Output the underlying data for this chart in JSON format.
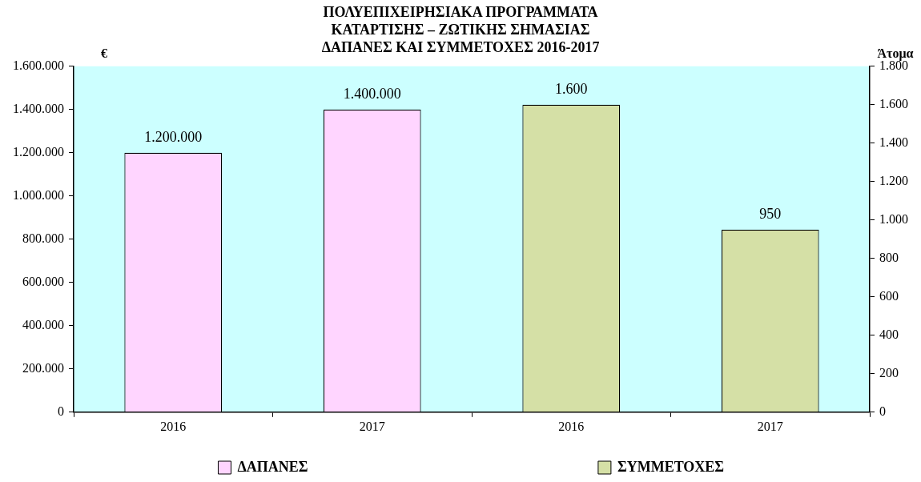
{
  "chart_data": {
    "type": "bar",
    "title": "ΠΟΛΥΕΠΙΧΕΙΡΗΣΙΑΚΑ ΠΡΟΓΡΑΜΜΑΤΑ\nΚΑΤΑΡΤΙΣΗΣ – ΖΩΤΙΚΗΣ ΣΗΜΑΣΙΑΣ\nΔΑΠΑΝΕΣ ΚΑΙ ΣΥΜΜΕΤΟΧΕΣ 2016-2017",
    "ylabel": "€",
    "y2label": "Άτομα",
    "categories": [
      "2016",
      "2017",
      "2016",
      "2017"
    ],
    "series": [
      {
        "name": "ΔΑΠΑΝΕΣ",
        "color": "#ffd5ff",
        "values": [
          1200000,
          1400000,
          null,
          null
        ],
        "value_labels": [
          "1.200.000",
          "1.400.000",
          null,
          null
        ]
      },
      {
        "name": "ΣΥΜΜΕΤΟΧΕΣ",
        "color": "#d5e0a6",
        "axis": "y2",
        "values": [
          null,
          null,
          1600,
          950
        ],
        "value_labels": [
          null,
          null,
          "1.600",
          "950"
        ]
      }
    ],
    "ylim": [
      0,
      1600000
    ],
    "yticks": [
      {
        "value": 0,
        "label": "0"
      },
      {
        "value": 200000,
        "label": "200.000"
      },
      {
        "value": 400000,
        "label": "400.000"
      },
      {
        "value": 600000,
        "label": "600.000"
      },
      {
        "value": 800000,
        "label": "800.000"
      },
      {
        "value": 1000000,
        "label": "1.000.000"
      },
      {
        "value": 1200000,
        "label": "1.200.000"
      },
      {
        "value": 1400000,
        "label": "1.400.000"
      },
      {
        "value": 1600000,
        "label": "1.600.000"
      }
    ],
    "y2lim": [
      0,
      1800
    ],
    "y2ticks": [
      0,
      200,
      400,
      600,
      800,
      {
        "value": 1000,
        "label": "1.000"
      },
      {
        "value": 1200,
        "label": "1.200"
      },
      {
        "value": 1400,
        "label": "1.400"
      },
      {
        "value": 1600,
        "label": "1.600"
      },
      {
        "value": 1800,
        "label": "1.800"
      }
    ],
    "grid": false,
    "legend": "bottom"
  }
}
